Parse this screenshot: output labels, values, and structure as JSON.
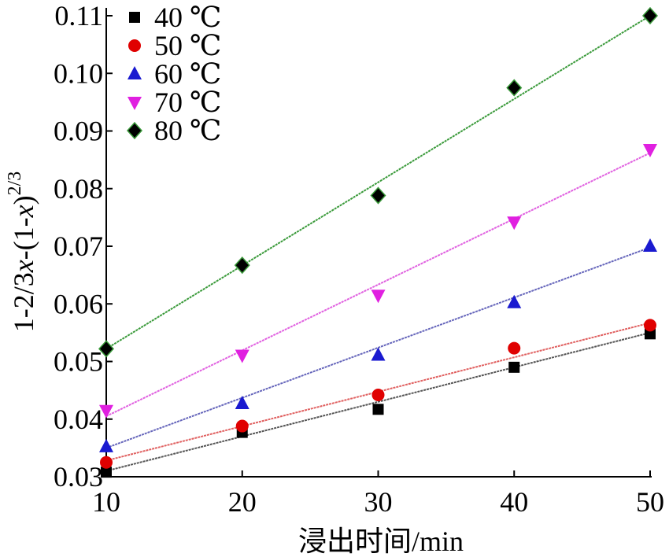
{
  "chart_data": {
    "type": "scatter",
    "title": "",
    "xlabel": "浸出时间/min",
    "ylabel_parts": {
      "main": "1-2/3",
      "x1": "x",
      "mid": "-(1-",
      "x2": "x",
      "close": ")",
      "sup": "2/3"
    },
    "xlim": [
      10,
      50
    ],
    "ylim": [
      0.03,
      0.11
    ],
    "xticks": [
      10,
      20,
      30,
      40,
      50
    ],
    "xtick_labels": [
      "10",
      "20",
      "30",
      "40",
      "50"
    ],
    "yticks": [
      0.03,
      0.04,
      0.05,
      0.06,
      0.07,
      0.08,
      0.09,
      0.1,
      0.11
    ],
    "ytick_labels": [
      "0.03",
      "0.04",
      "0.05",
      "0.06",
      "0.07",
      "0.08",
      "0.09",
      "0.10",
      "0.11"
    ],
    "grid": false,
    "legend_position": "top-left",
    "x": [
      10,
      20,
      30,
      40,
      50
    ],
    "series": [
      {
        "name": "40 ℃",
        "marker": "square",
        "color": "#000000",
        "line_color": "#555555",
        "values": [
          0.0308,
          0.0377,
          0.0417,
          0.049,
          0.0548
        ],
        "fit": [
          0.031,
          0.055
        ]
      },
      {
        "name": "50 ℃",
        "marker": "circle",
        "color": "#e00000",
        "line_color": "#e06060",
        "values": [
          0.0325,
          0.0388,
          0.0442,
          0.0523,
          0.0563
        ],
        "fit": [
          0.0328,
          0.0567
        ]
      },
      {
        "name": "60 ℃",
        "marker": "triangle-up",
        "color": "#1a1ad0",
        "line_color": "#6666bb",
        "values": [
          0.0352,
          0.0427,
          0.0511,
          0.0602,
          0.07
        ],
        "fit": [
          0.035,
          0.0698
        ]
      },
      {
        "name": "70 ℃",
        "marker": "triangle-down",
        "color": "#e020e0",
        "line_color": "#e060e0",
        "values": [
          0.0415,
          0.0511,
          0.0615,
          0.0742,
          0.0868
        ],
        "fit": [
          0.0405,
          0.0862
        ]
      },
      {
        "name": "80 ℃",
        "marker": "diamond",
        "color": "#000000",
        "line_color": "#3a9a3a",
        "values": [
          0.0522,
          0.0667,
          0.0788,
          0.0975,
          0.11
        ],
        "fit": [
          0.0522,
          0.11
        ]
      }
    ]
  }
}
